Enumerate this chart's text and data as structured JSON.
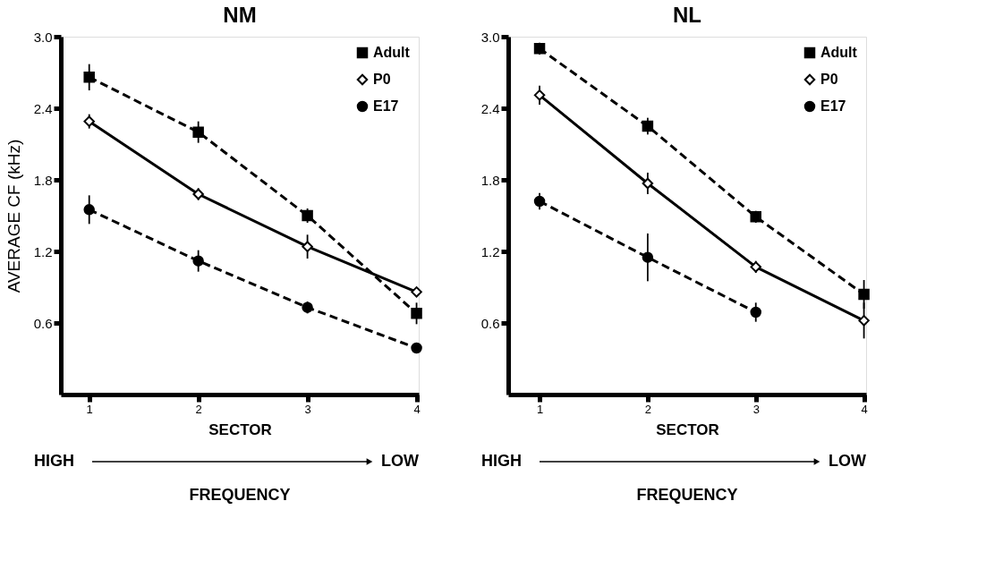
{
  "chart_data": [
    {
      "type": "line",
      "title": "NM",
      "xlabel": "SECTOR",
      "ylabel": "AVERAGE  CF (kHz)",
      "x": [
        1,
        2,
        3,
        4
      ],
      "xlim": [
        0.74,
        4.02
      ],
      "xticks": [
        1,
        2,
        3,
        4
      ],
      "ylim": [
        0,
        3.0
      ],
      "yticks": [
        0.6,
        1.2,
        1.8,
        2.4,
        {
          "value": 3.0,
          "label": "3.0"
        }
      ],
      "grid": false,
      "legend": "top right",
      "series": [
        {
          "name": "Adult",
          "color": "#000000",
          "marker": "square",
          "line_style": "dashed",
          "values": [
            2.66,
            2.2,
            1.5,
            0.68
          ],
          "errors": [
            0.11,
            0.09,
            0.06,
            0.09
          ]
        },
        {
          "name": "P0",
          "color": "#000000",
          "marker": "diamond",
          "line_style": "solid",
          "values": [
            2.29,
            1.68,
            1.24,
            0.86
          ],
          "errors": [
            0.06,
            0.05,
            0.1,
            null
          ]
        },
        {
          "name": "E17",
          "color": "#000000",
          "marker": "circle",
          "line_style": "dashed",
          "values": [
            1.55,
            1.12,
            0.73,
            0.39
          ],
          "errors": [
            0.12,
            0.09,
            0.05,
            null
          ]
        }
      ],
      "annotations": [
        "HIGH",
        "LOW",
        "FREQUENCY"
      ]
    },
    {
      "type": "line",
      "title": "NL",
      "xlabel": "SECTOR",
      "x": [
        1,
        2,
        3,
        4
      ],
      "xlim": [
        0.71,
        4.02
      ],
      "xticks": [
        1,
        2,
        3,
        4
      ],
      "ylim": [
        0,
        3.0
      ],
      "yticks": [
        0.6,
        1.2,
        1.8,
        2.4,
        {
          "value": 3.0,
          "label": "3.0"
        }
      ],
      "grid": false,
      "legend": "top right",
      "series": [
        {
          "name": "Adult",
          "color": "#000000",
          "marker": "square",
          "line_style": "dashed",
          "values": [
            2.9,
            2.25,
            1.49,
            0.84
          ],
          "errors": [
            0.05,
            0.07,
            0.05,
            0.12
          ]
        },
        {
          "name": "P0",
          "color": "#000000",
          "marker": "diamond",
          "line_style": "solid",
          "values": [
            2.51,
            1.77,
            1.07,
            0.62
          ],
          "errors": [
            0.08,
            0.09,
            0.05,
            0.15
          ]
        },
        {
          "name": "E17",
          "color": "#000000",
          "marker": "circle",
          "line_style": "dashed",
          "values": [
            1.62,
            1.15,
            0.69,
            null
          ],
          "errors": [
            0.07,
            0.2,
            0.08,
            null
          ]
        }
      ],
      "annotations": [
        "HIGH",
        "LOW",
        "FREQUENCY"
      ]
    }
  ]
}
